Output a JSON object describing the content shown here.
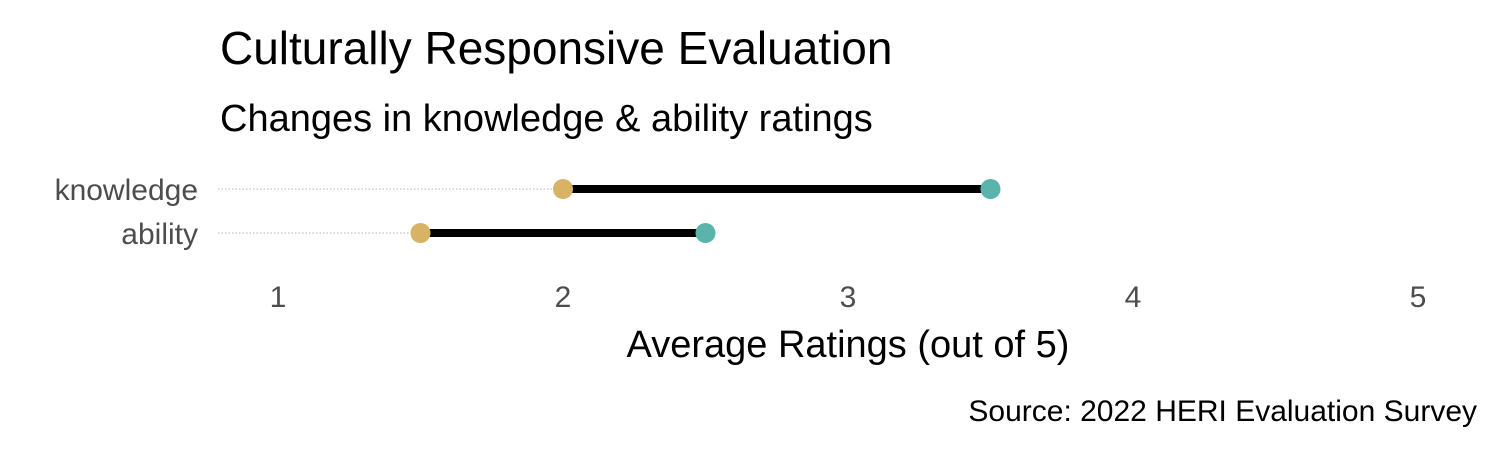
{
  "chart_data": {
    "type": "dumbbell",
    "title": "Culturally Responsive Evaluation",
    "subtitle": "Changes in knowledge & ability ratings",
    "xlabel": "Average Ratings (out of 5)",
    "ylabel": "",
    "caption": "Source: 2022 HERI Evaluation Survey",
    "categories": [
      "knowledge",
      "ability"
    ],
    "start_values": [
      2.0,
      1.5
    ],
    "end_values": [
      3.5,
      2.5
    ],
    "xlim": [
      1,
      5
    ],
    "xticks": [
      "1",
      "2",
      "3",
      "4",
      "5"
    ],
    "grid": false,
    "colors": {
      "start": "#d8b365",
      "end": "#5ab4ac",
      "segment": "#000000",
      "guide": "#b3b3b3"
    }
  }
}
